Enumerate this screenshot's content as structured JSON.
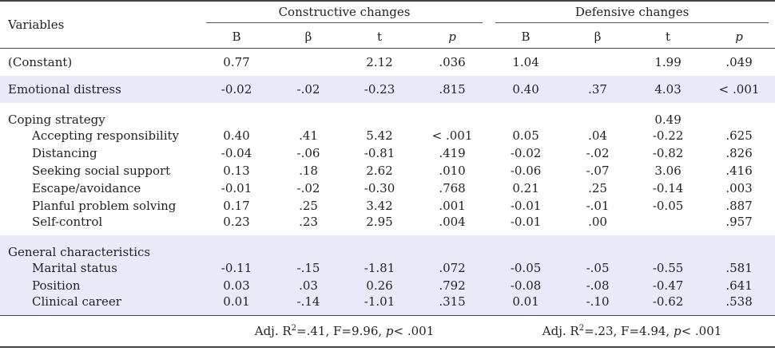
{
  "header": {
    "variables": "Variables",
    "group1": "Constructive changes",
    "group2": "Defensive changes",
    "cols": [
      "B",
      "β",
      "t",
      "p",
      "B",
      "β",
      "t",
      "p"
    ]
  },
  "constant": {
    "label": "(Constant)",
    "vals": [
      "0.77",
      "",
      "2.12",
      ".036",
      "1.04",
      "",
      "1.99",
      ".049"
    ]
  },
  "distress": {
    "label": "Emotional distress",
    "vals": [
      "-0.02",
      "-.02",
      "-0.23",
      ".815",
      "0.40",
      ".37",
      "4.03",
      "< .001"
    ]
  },
  "coping": {
    "label": "Coping strategy",
    "extra_t": "0.49",
    "rows": [
      {
        "label": "Accepting responsibility",
        "vals": [
          "0.40",
          ".41",
          "5.42",
          "< .001",
          "0.05",
          ".04",
          "-0.22",
          ".625"
        ]
      },
      {
        "label": "Distancing",
        "vals": [
          "-0.04",
          "-.06",
          "-0.81",
          ".419",
          "-0.02",
          "-.02",
          "-0.82",
          ".826"
        ]
      },
      {
        "label": "Seeking social support",
        "vals": [
          "0.13",
          ".18",
          "2.62",
          ".010",
          "-0.06",
          "-.07",
          "3.06",
          ".416"
        ]
      },
      {
        "label": "Escape/avoidance",
        "vals": [
          "-0.01",
          "-.02",
          "-0.30",
          ".768",
          "0.21",
          ".25",
          "-0.14",
          ".003"
        ]
      },
      {
        "label": "Planful problem solving",
        "vals": [
          "0.17",
          ".25",
          "3.42",
          ".001",
          "-0.01",
          "-.01",
          "-0.05",
          ".887"
        ]
      },
      {
        "label": "Self-control",
        "vals": [
          "0.23",
          ".23",
          "2.95",
          ".004",
          "-0.01",
          ".00",
          "",
          ".957"
        ]
      }
    ]
  },
  "general": {
    "label": "General characteristics",
    "rows": [
      {
        "label": "Marital status",
        "vals": [
          "-0.11",
          "-.15",
          "-1.81",
          ".072",
          "-0.05",
          "-.05",
          "-0.55",
          ".581"
        ]
      },
      {
        "label": "Position",
        "vals": [
          "0.03",
          ".03",
          "0.26",
          ".792",
          "-0.08",
          "-.08",
          "-0.47",
          ".641"
        ]
      },
      {
        "label": "Clinical career",
        "vals": [
          "0.01",
          "-.14",
          "-1.01",
          ".315",
          "0.01",
          "-.10",
          "-0.62",
          ".538"
        ]
      }
    ]
  },
  "footer": {
    "left_a": "Adj. R",
    "left_sup": "2",
    "left_b": "=.41,  F=9.96,  ",
    "left_p": "p",
    "left_c": "< .001",
    "right_a": "Adj. R",
    "right_sup": "2",
    "right_b": "=.23,  F=4.94,  ",
    "right_p": "p",
    "right_c": "< .001"
  }
}
